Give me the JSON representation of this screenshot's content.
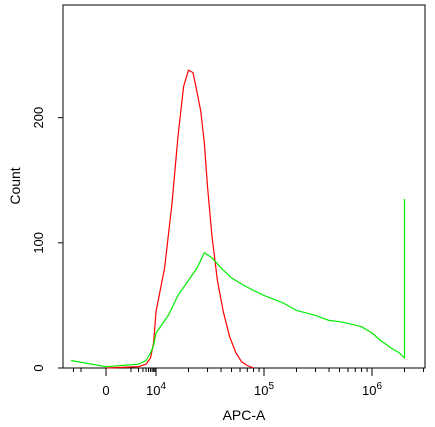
{
  "chart_data": {
    "type": "line",
    "title": "",
    "xlabel": "APC-A",
    "ylabel": "Count",
    "x_scale": "biexponential",
    "x_ticks": [
      {
        "value": 0,
        "base": "0",
        "exp": ""
      },
      {
        "value": 10000,
        "base": "10",
        "exp": "4"
      },
      {
        "value": 100000,
        "base": "10",
        "exp": "5"
      },
      {
        "value": 1000000,
        "base": "10",
        "exp": "6"
      }
    ],
    "y_ticks": [
      0,
      100,
      200
    ],
    "ylim": [
      0,
      290
    ],
    "grid": false,
    "legend": "none",
    "series": [
      {
        "color": "#ff0000",
        "x": [
          0,
          2000,
          4000,
          6000,
          8000,
          10000,
          12000,
          14000,
          16000,
          18000,
          20000,
          22000,
          24000,
          26000,
          28000,
          30000,
          33000,
          37000,
          42000,
          48000,
          55000,
          62000,
          70000,
          80000
        ],
        "y": [
          0,
          1,
          3,
          8,
          20,
          45,
          80,
          130,
          185,
          225,
          238,
          236,
          220,
          205,
          180,
          145,
          105,
          70,
          45,
          25,
          12,
          5,
          2,
          0
        ]
      },
      {
        "color": "#00ee00",
        "x": [
          -2500,
          0,
          2000,
          4000,
          6000,
          8000,
          10000,
          13000,
          16000,
          20000,
          24000,
          28000,
          33000,
          40000,
          50000,
          65000,
          80000,
          100000,
          150000,
          200000,
          300000,
          400000,
          500000,
          650000,
          800000,
          1000000,
          1200000,
          1500000,
          1800000,
          2000000,
          2000000
        ],
        "y": [
          6,
          1,
          3,
          6,
          12,
          18,
          28,
          42,
          58,
          70,
          80,
          92,
          88,
          80,
          72,
          66,
          62,
          58,
          52,
          46,
          42,
          38,
          37,
          35,
          33,
          28,
          22,
          16,
          12,
          8,
          135
        ]
      }
    ]
  }
}
